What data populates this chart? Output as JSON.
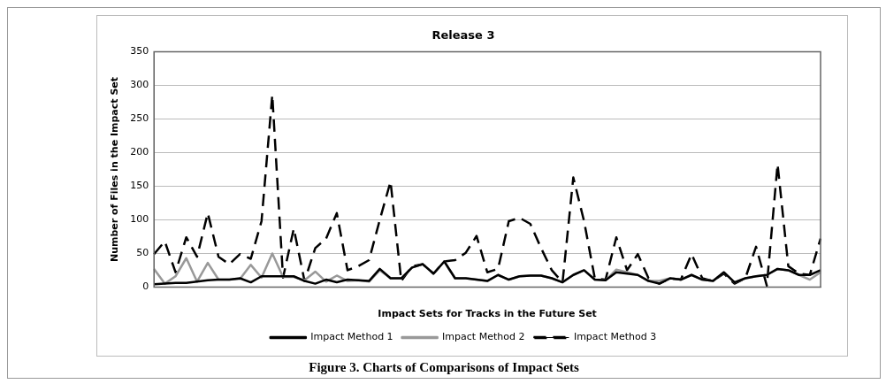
{
  "chart_data": {
    "type": "line",
    "title": "Release 3",
    "xlabel": "Impact Sets for Tracks in the Future Set",
    "ylabel": "Number of Files in the Impact Set",
    "categories": [
      null,
      null,
      null,
      null,
      null,
      null,
      null,
      null,
      null,
      null,
      null,
      null,
      null,
      null,
      null,
      null,
      null,
      null,
      null,
      null,
      null,
      null,
      null,
      null,
      null,
      null,
      null,
      null,
      null,
      null,
      null,
      null,
      null,
      null,
      null,
      null,
      null,
      null,
      null,
      null,
      null,
      null,
      null,
      null,
      null,
      null,
      null,
      null,
      null,
      null,
      null,
      null,
      null,
      null,
      null,
      null,
      null,
      null,
      null,
      null,
      null,
      null,
      null
    ],
    "series": [
      {
        "name": "Impact Method 1",
        "color": "#000000",
        "line_style": "solid",
        "values": [
          4,
          5,
          6,
          6,
          8,
          10,
          11,
          11,
          13,
          7,
          16,
          16,
          16,
          16,
          9,
          5,
          11,
          7,
          11,
          10,
          9,
          27,
          13,
          13,
          29,
          34,
          20,
          38,
          13,
          13,
          11,
          9,
          18,
          11,
          16,
          17,
          17,
          13,
          7,
          18,
          25,
          11,
          10,
          22,
          20,
          18,
          9,
          5,
          13,
          11,
          18,
          11,
          9,
          22,
          7,
          13,
          16,
          18,
          27,
          25,
          18,
          18,
          25
        ]
      },
      {
        "name": "Impact Method 2",
        "color": "#999999",
        "line_style": "solid",
        "values": [
          27,
          5,
          16,
          43,
          8,
          36,
          11,
          11,
          12,
          33,
          14,
          50,
          15,
          15,
          10,
          23,
          8,
          17,
          9,
          10,
          8,
          25,
          13,
          13,
          29,
          34,
          20,
          38,
          13,
          13,
          11,
          9,
          18,
          11,
          16,
          17,
          17,
          13,
          7,
          18,
          25,
          11,
          10,
          26,
          22,
          18,
          9,
          9,
          13,
          11,
          18,
          11,
          9,
          22,
          7,
          13,
          16,
          18,
          27,
          25,
          18,
          11,
          22
        ]
      },
      {
        "name": "Impact Method 3",
        "color": "#000000",
        "line_style": "dashed",
        "values": [
          49,
          68,
          22,
          74,
          45,
          110,
          45,
          34,
          49,
          42,
          98,
          286,
          14,
          87,
          9,
          58,
          72,
          110,
          25,
          31,
          40,
          100,
          157,
          9,
          31,
          34,
          20,
          38,
          40,
          51,
          76,
          22,
          27,
          98,
          103,
          94,
          58,
          25,
          7,
          163,
          98,
          13,
          11,
          74,
          25,
          49,
          13,
          5,
          13,
          11,
          49,
          13,
          9,
          20,
          5,
          13,
          60,
          2,
          183,
          31,
          20,
          18,
          72
        ]
      }
    ],
    "ylim": [
      0,
      350
    ],
    "yticks": [
      0,
      50,
      100,
      150,
      200,
      250,
      300,
      350
    ],
    "grid": "y",
    "legend": "bottom",
    "marker": "none",
    "annotations": [
      "Figure 3.  Charts of Comparisons of Impact Sets"
    ]
  }
}
